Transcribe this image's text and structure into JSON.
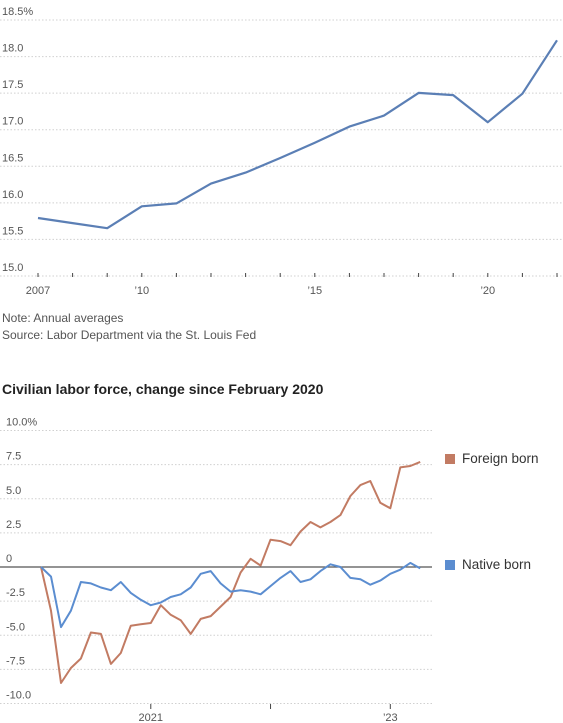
{
  "chart_data": [
    {
      "type": "line",
      "title": "",
      "xlabel": "",
      "ylabel": "",
      "ylim": [
        15.0,
        18.5
      ],
      "yticks": [
        "18.5%",
        "18.0",
        "17.5",
        "17.0",
        "16.5",
        "16.0",
        "15.5",
        "15.0"
      ],
      "xticks": [
        {
          "x": 2007,
          "label": "2007"
        },
        {
          "x": 2010,
          "label": "’10"
        },
        {
          "x": 2015,
          "label": "’15"
        },
        {
          "x": 2020,
          "label": "’20"
        }
      ],
      "color": "#5b7fb5",
      "x": [
        2007,
        2008,
        2009,
        2010,
        2011,
        2012,
        2013,
        2014,
        2015,
        2016,
        2017,
        2018,
        2019,
        2020,
        2021,
        2022
      ],
      "values": [
        15.67,
        15.6,
        15.53,
        15.83,
        15.87,
        16.14,
        16.29,
        16.49,
        16.7,
        16.92,
        17.07,
        17.38,
        17.35,
        16.98,
        17.37,
        18.1
      ]
    },
    {
      "type": "line",
      "title": "Civilian labor force, change since February 2020",
      "ylim": [
        -10.0,
        10.0
      ],
      "yticks": [
        "10.0%",
        "7.5",
        "5.0",
        "2.5",
        "0",
        "-2.5",
        "-5.0",
        "-7.5",
        "-10.0"
      ],
      "xticks": [
        {
          "x": 11,
          "label": "2021"
        },
        {
          "x": 35,
          "label": "’23"
        }
      ],
      "series": [
        {
          "name": "Foreign born",
          "color": "#c27b63",
          "values": [
            0.0,
            -3.2,
            -8.5,
            -7.4,
            -6.7,
            -4.8,
            -4.9,
            -7.1,
            -6.3,
            -4.3,
            -4.2,
            -4.1,
            -2.8,
            -3.5,
            -3.9,
            -4.9,
            -3.8,
            -3.6,
            -2.9,
            -2.2,
            -0.4,
            0.6,
            0.1,
            2.0,
            1.9,
            1.6,
            2.6,
            3.3,
            2.9,
            3.3,
            3.8,
            5.2,
            6.0,
            6.3,
            4.7,
            4.3,
            7.3,
            7.4,
            7.7
          ]
        },
        {
          "name": "Native born",
          "color": "#5b8dd0",
          "values": [
            0.0,
            -0.7,
            -4.4,
            -3.2,
            -1.1,
            -1.2,
            -1.5,
            -1.7,
            -1.1,
            -1.9,
            -2.4,
            -2.8,
            -2.6,
            -2.2,
            -2.0,
            -1.5,
            -0.5,
            -0.3,
            -1.2,
            -1.8,
            -1.7,
            -1.8,
            -2.0,
            -1.4,
            -0.8,
            -0.3,
            -1.1,
            -0.9,
            -0.3,
            0.2,
            0.0,
            -0.8,
            -0.9,
            -1.3,
            -1.0,
            -0.5,
            -0.2,
            0.3,
            -0.1
          ]
        }
      ]
    }
  ],
  "notes": {
    "note": "Note: Annual averages",
    "source": "Source: Labor Department via the St. Louis Fed"
  },
  "legend": {
    "foreign": "Foreign born",
    "native": "Native born"
  }
}
